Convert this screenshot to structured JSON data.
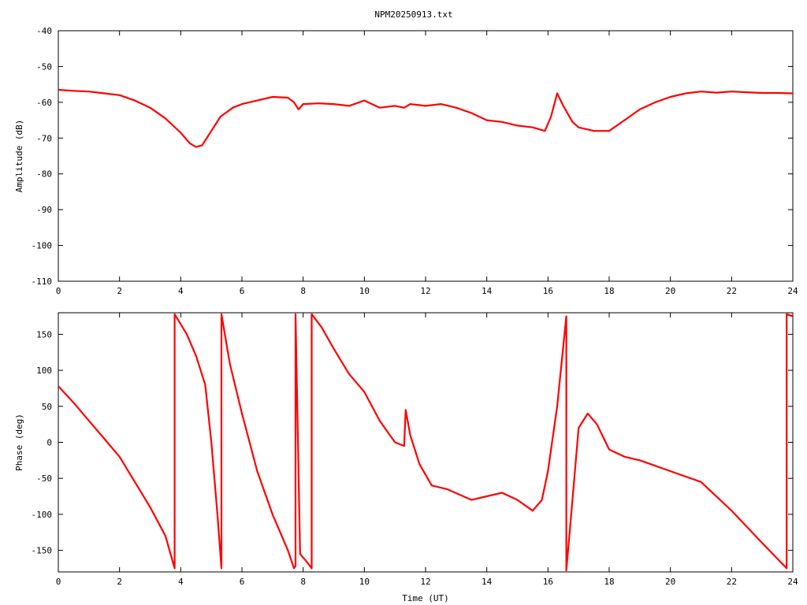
{
  "title": "NPM20250913.txt",
  "colors": {
    "series": "#ff0000",
    "axes": "#000000",
    "background": "#ffffff"
  },
  "chart_data": [
    {
      "type": "line",
      "ylabel": "Amplitude (dB)",
      "xlabel": "",
      "xlim": [
        0,
        24
      ],
      "ylim": [
        -110,
        -40
      ],
      "x_ticks": [
        "0",
        "2",
        "4",
        "6",
        "8",
        "10",
        "12",
        "14",
        "16",
        "18",
        "20",
        "22",
        "24"
      ],
      "y_ticks": [
        "-40",
        "-50",
        "-60",
        "-70",
        "-80",
        "-90",
        "-100",
        "-110"
      ],
      "grid": false,
      "series": [
        {
          "x": [
            0,
            0.5,
            1,
            1.5,
            2,
            2.5,
            3,
            3.5,
            4,
            4.3,
            4.5,
            4.7,
            5,
            5.3,
            5.7,
            6,
            6.5,
            7,
            7.5,
            7.7,
            7.85,
            8,
            8.5,
            9,
            9.5,
            10,
            10.5,
            11,
            11.3,
            11.5,
            12,
            12.5,
            13,
            13.5,
            14,
            14.5,
            15,
            15.5,
            15.9,
            16.1,
            16.3,
            16.5,
            16.8,
            17,
            17.5,
            18,
            18.5,
            19,
            19.5,
            20,
            20.5,
            21,
            21.5,
            22,
            22.5,
            23,
            23.5,
            24
          ],
          "y": [
            -56.5,
            -56.8,
            -57,
            -57.5,
            -58,
            -59.5,
            -61.5,
            -64.5,
            -68.5,
            -71.5,
            -72.5,
            -72,
            -68,
            -64,
            -61.5,
            -60.5,
            -59.5,
            -58.5,
            -58.7,
            -60,
            -62,
            -60.5,
            -60.3,
            -60.5,
            -61,
            -59.5,
            -61.5,
            -61,
            -61.5,
            -60.5,
            -61,
            -60.5,
            -61.5,
            -63,
            -65,
            -65.5,
            -66.5,
            -67,
            -68,
            -64,
            -57.5,
            -61,
            -65.5,
            -67,
            -68,
            -68,
            -65,
            -62,
            -60,
            -58.5,
            -57.5,
            -57,
            -57.3,
            -57,
            -57.2,
            -57.4,
            -57.4,
            -57.5
          ]
        }
      ]
    },
    {
      "type": "line",
      "ylabel": "Phase (deg)",
      "xlabel": "Time (UT)",
      "xlim": [
        0,
        24
      ],
      "ylim": [
        -180,
        180
      ],
      "x_ticks": [
        "0",
        "2",
        "4",
        "6",
        "8",
        "10",
        "12",
        "14",
        "16",
        "18",
        "20",
        "22",
        "24"
      ],
      "y_ticks": [
        "150",
        "100",
        "50",
        "0",
        "-50",
        "-100",
        "-150"
      ],
      "grid": false,
      "series": [
        {
          "x": [
            0,
            0.5,
            1,
            1.5,
            2,
            2.5,
            3,
            3.5,
            3.8,
            3.8,
            4.2,
            4.5,
            4.8,
            5.0,
            5.2,
            5.33,
            5.33,
            5.6,
            6.0,
            6.5,
            7.0,
            7.5,
            7.7,
            7.75,
            7.75,
            7.9,
            8.1,
            8.28,
            8.28,
            8.6,
            9.0,
            9.5,
            10.0,
            10.5,
            11.0,
            11.3,
            11.35,
            11.5,
            11.8,
            12.2,
            12.7,
            13.5,
            14.0,
            14.5,
            15.0,
            15.5,
            15.8,
            16.0,
            16.3,
            16.6,
            16.6,
            16.8,
            17.0,
            17.3,
            17.6,
            18.0,
            18.5,
            19.0,
            20.0,
            21.0,
            22.0,
            23.0,
            23.8,
            23.8,
            24
          ],
          "y": [
            78,
            55,
            30,
            5,
            -20,
            -55,
            -90,
            -130,
            -175,
            178,
            150,
            120,
            80,
            0,
            -100,
            -175,
            178,
            110,
            40,
            -40,
            -100,
            -150,
            -175,
            -172,
            178,
            -155,
            -165,
            -175,
            178,
            160,
            130,
            95,
            70,
            30,
            0,
            -5,
            45,
            10,
            -30,
            -60,
            -65,
            -80,
            -75,
            -70,
            -80,
            -95,
            -80,
            -40,
            50,
            175,
            -178,
            -80,
            20,
            40,
            25,
            -10,
            -20,
            -25,
            -40,
            -55,
            -95,
            -140,
            -175,
            178,
            175
          ]
        }
      ]
    }
  ]
}
